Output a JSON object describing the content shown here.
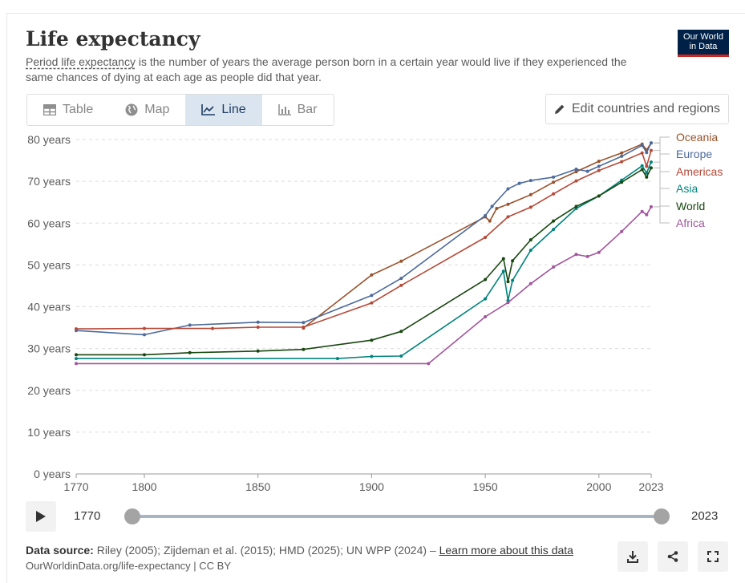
{
  "header": {
    "title": "Life expectancy",
    "subtitle_link": "Period life expectancy",
    "subtitle_rest": " is the number of years the average person born in a certain year would live if they experienced the same chances of dying at each age as people did that year.",
    "logo_line1": "Our World",
    "logo_line2": "in Data"
  },
  "tabs": [
    {
      "label": "Table",
      "icon": "table-icon"
    },
    {
      "label": "Map",
      "icon": "globe-icon"
    },
    {
      "label": "Line",
      "icon": "line-chart-icon",
      "active": true
    },
    {
      "label": "Bar",
      "icon": "bar-chart-icon"
    }
  ],
  "edit_button": {
    "label": "Edit countries and regions",
    "icon": "pencil-icon"
  },
  "chart_data": {
    "type": "line",
    "xlim": [
      1770,
      2023
    ],
    "ylim": [
      0,
      80
    ],
    "x_ticks": [
      1770,
      1800,
      1850,
      1900,
      1950,
      2000,
      2023
    ],
    "y_ticks": [
      0,
      10,
      20,
      30,
      40,
      50,
      60,
      70,
      80
    ],
    "y_tick_labels": [
      "0 years",
      "10 years",
      "20 years",
      "30 years",
      "40 years",
      "50 years",
      "60 years",
      "70 years",
      "80 years"
    ],
    "grid": "horizontal-dashed",
    "legend": "right-end-labels",
    "series": [
      {
        "name": "Oceania",
        "color": "#9a5129",
        "points": [
          [
            1870,
            34.9
          ],
          [
            1900,
            47.6
          ],
          [
            1913,
            50.9
          ],
          [
            1950,
            61.5
          ],
          [
            1952,
            60.5
          ],
          [
            1955,
            63.5
          ],
          [
            1960,
            64.5
          ],
          [
            1970,
            66.8
          ],
          [
            1980,
            69.8
          ],
          [
            1990,
            72.3
          ],
          [
            2000,
            74.8
          ],
          [
            2010,
            76.8
          ],
          [
            2019,
            78.9
          ],
          [
            2021,
            77.5
          ],
          [
            2023,
            79.2
          ]
        ]
      },
      {
        "name": "Europe",
        "color": "#4c6a9c",
        "points": [
          [
            1770,
            34.3
          ],
          [
            1800,
            33.3
          ],
          [
            1820,
            35.6
          ],
          [
            1850,
            36.3
          ],
          [
            1870,
            36.2
          ],
          [
            1900,
            42.7
          ],
          [
            1913,
            46.8
          ],
          [
            1950,
            61.8
          ],
          [
            1953,
            64.0
          ],
          [
            1960,
            68.2
          ],
          [
            1965,
            69.5
          ],
          [
            1970,
            70.2
          ],
          [
            1980,
            71.0
          ],
          [
            1990,
            72.9
          ],
          [
            1995,
            72.4
          ],
          [
            2000,
            73.6
          ],
          [
            2010,
            76.0
          ],
          [
            2019,
            78.6
          ],
          [
            2021,
            76.9
          ],
          [
            2023,
            79.2
          ]
        ]
      },
      {
        "name": "Americas",
        "color": "#b64837",
        "points": [
          [
            1770,
            34.7
          ],
          [
            1800,
            34.8
          ],
          [
            1830,
            34.8
          ],
          [
            1850,
            35.1
          ],
          [
            1870,
            35.1
          ],
          [
            1900,
            40.9
          ],
          [
            1913,
            45.1
          ],
          [
            1950,
            56.6
          ],
          [
            1960,
            61.5
          ],
          [
            1970,
            63.8
          ],
          [
            1980,
            67.0
          ],
          [
            1990,
            70.1
          ],
          [
            2000,
            72.6
          ],
          [
            2010,
            74.7
          ],
          [
            2019,
            76.8
          ],
          [
            2021,
            73.6
          ],
          [
            2023,
            77.4
          ]
        ]
      },
      {
        "name": "Asia",
        "color": "#00847e",
        "points": [
          [
            1770,
            27.6
          ],
          [
            1885,
            27.6
          ],
          [
            1900,
            28.1
          ],
          [
            1913,
            28.2
          ],
          [
            1950,
            41.9
          ],
          [
            1958,
            48.5
          ],
          [
            1960,
            41.5
          ],
          [
            1962,
            46.3
          ],
          [
            1970,
            53.5
          ],
          [
            1980,
            58.5
          ],
          [
            1990,
            63.5
          ],
          [
            2000,
            66.5
          ],
          [
            2010,
            70.3
          ],
          [
            2019,
            73.7
          ],
          [
            2021,
            72.0
          ],
          [
            2023,
            74.6
          ]
        ]
      },
      {
        "name": "World",
        "color": "#18470f",
        "points": [
          [
            1770,
            28.5
          ],
          [
            1800,
            28.5
          ],
          [
            1820,
            29.0
          ],
          [
            1850,
            29.4
          ],
          [
            1870,
            29.8
          ],
          [
            1900,
            32.0
          ],
          [
            1913,
            34.1
          ],
          [
            1950,
            46.5
          ],
          [
            1958,
            51.5
          ],
          [
            1960,
            46.0
          ],
          [
            1962,
            51.0
          ],
          [
            1970,
            56.0
          ],
          [
            1980,
            60.5
          ],
          [
            1990,
            64.0
          ],
          [
            2000,
            66.5
          ],
          [
            2010,
            69.8
          ],
          [
            2019,
            72.8
          ],
          [
            2021,
            71.0
          ],
          [
            2023,
            73.2
          ]
        ]
      },
      {
        "name": "Africa",
        "color": "#a2559c",
        "points": [
          [
            1770,
            26.4
          ],
          [
            1925,
            26.4
          ],
          [
            1950,
            37.6
          ],
          [
            1960,
            41.0
          ],
          [
            1970,
            45.5
          ],
          [
            1980,
            49.5
          ],
          [
            1990,
            52.5
          ],
          [
            1995,
            52.0
          ],
          [
            2000,
            53.0
          ],
          [
            2010,
            58.0
          ],
          [
            2019,
            62.8
          ],
          [
            2021,
            62.0
          ],
          [
            2023,
            63.9
          ]
        ]
      }
    ]
  },
  "timeline": {
    "start": "1770",
    "end": "2023"
  },
  "footer": {
    "source_label": "Data source:",
    "source_text": " Riley (2005); Zijdeman et al. (2015); HMD (2025); UN WPP (2024) – ",
    "learn_more": "Learn more about this data",
    "url_line": "OurWorldinData.org/life-expectancy | CC BY"
  }
}
